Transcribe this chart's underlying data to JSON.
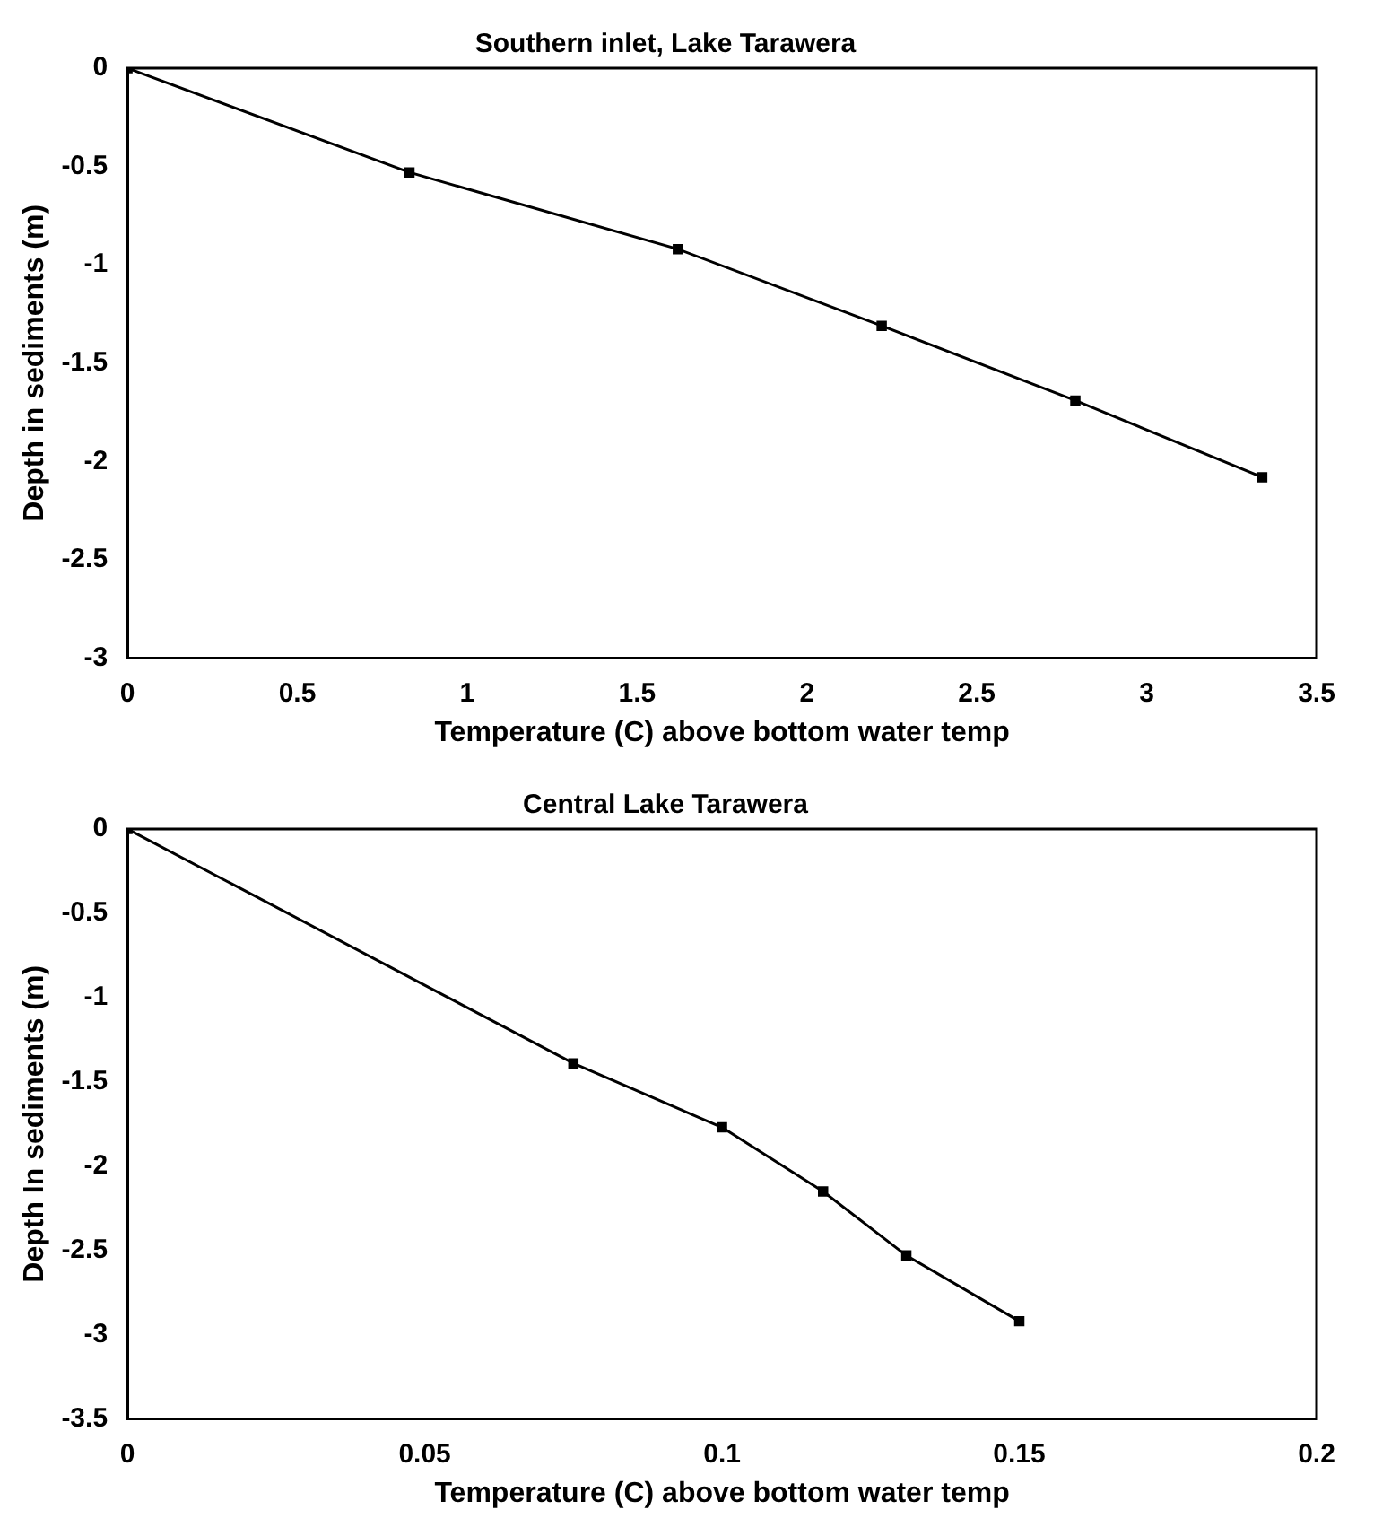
{
  "chart_data": [
    {
      "type": "line",
      "title": "Southern inlet, Lake Tarawera",
      "xlabel": "Temperature (C) above bottom water temp",
      "ylabel": "Depth in sediments (m)",
      "marker": "square",
      "line_style": "solid",
      "grid": false,
      "legend": false,
      "series": [
        {
          "color": "#000000",
          "x": [
            0,
            0.83,
            1.62,
            2.22,
            2.79,
            3.34
          ],
          "values": [
            0,
            -0.53,
            -0.92,
            -1.31,
            -1.69,
            -2.08
          ]
        }
      ],
      "xlim": [
        0,
        3.5
      ],
      "xticks": [
        0,
        0.5,
        1,
        1.5,
        2,
        2.5,
        3,
        3.5
      ],
      "ylim": [
        -3,
        0
      ],
      "yticks": [
        -3,
        -2.5,
        -2,
        -1.5,
        -1,
        -0.5,
        0
      ]
    },
    {
      "type": "line",
      "title": "Central Lake Tarawera",
      "xlabel": "Temperature (C) above bottom water temp",
      "ylabel": "Depth In sediments (m)",
      "marker": "square",
      "line_style": "solid",
      "grid": false,
      "legend": false,
      "series": [
        {
          "color": "#000000",
          "x": [
            0,
            0.075,
            0.1,
            0.117,
            0.131,
            0.15
          ],
          "values": [
            0,
            -1.39,
            -1.77,
            -2.15,
            -2.53,
            -2.92
          ]
        }
      ],
      "xlim": [
        0,
        0.2
      ],
      "xticks": [
        0,
        0.05,
        0.1,
        0.15,
        0.2
      ],
      "ylim": [
        -3.5,
        0
      ],
      "yticks": [
        -3.5,
        -3,
        -2.5,
        -2,
        -1.5,
        -1,
        -0.5,
        0
      ]
    }
  ]
}
